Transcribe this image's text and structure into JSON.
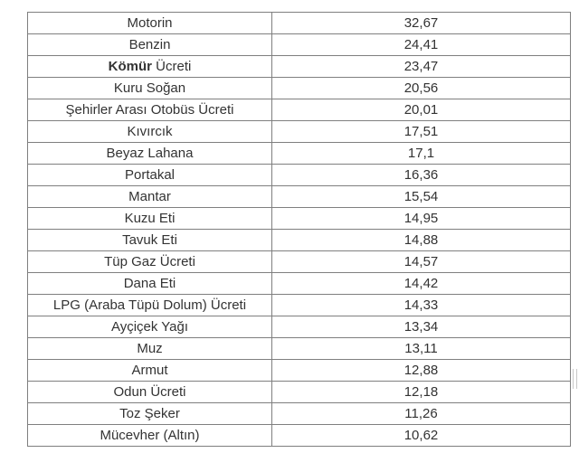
{
  "table": {
    "rows": [
      {
        "name": "Motorin",
        "value": "32,67"
      },
      {
        "name": "Benzin",
        "value": "24,41"
      },
      {
        "name_bold": "Kömür",
        "name": " Ücreti",
        "value": "23,47"
      },
      {
        "name": "Kuru Soğan",
        "value": "20,56"
      },
      {
        "name": "Şehirler Arası Otobüs Ücreti",
        "value": "20,01"
      },
      {
        "name": "Kıvırcık",
        "value": "17,51"
      },
      {
        "name": "Beyaz Lahana",
        "value": "17,1"
      },
      {
        "name": "Portakal",
        "value": "16,36"
      },
      {
        "name": "Mantar",
        "value": "15,54"
      },
      {
        "name": "Kuzu Eti",
        "value": "14,95"
      },
      {
        "name": "Tavuk Eti",
        "value": "14,88"
      },
      {
        "name": "Tüp Gaz Ücreti",
        "value": "14,57"
      },
      {
        "name": "Dana Eti",
        "value": "14,42"
      },
      {
        "name": "LPG (Araba Tüpü Dolum) Ücreti",
        "value": "14,33"
      },
      {
        "name": "Ayçiçek Yağı",
        "value": "13,34"
      },
      {
        "name": "Muz",
        "value": "13,11"
      },
      {
        "name": "Armut",
        "value": "12,88"
      },
      {
        "name": "Odun Ücreti",
        "value": "12,18"
      },
      {
        "name": "Toz Şeker",
        "value": "11,26"
      },
      {
        "name": "Mücevher (Altın)",
        "value": "10,62"
      }
    ]
  }
}
